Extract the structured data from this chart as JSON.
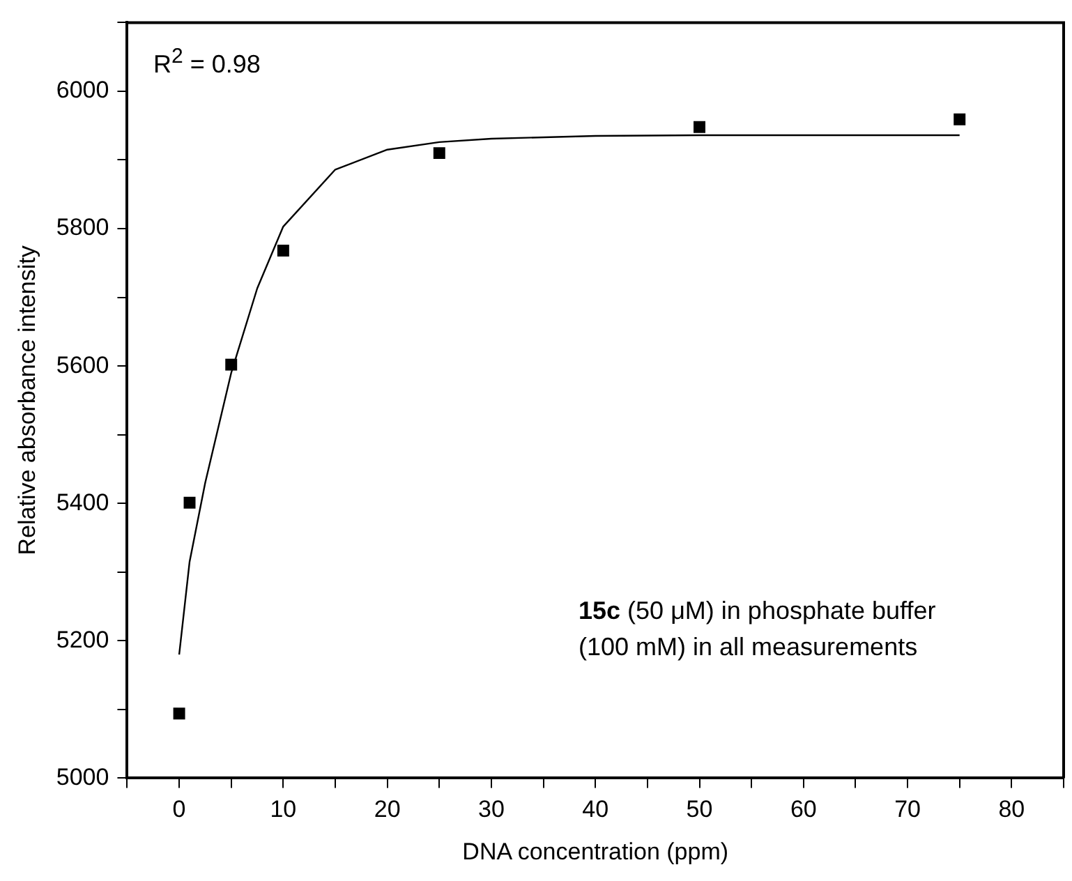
{
  "chart_data": {
    "type": "scatter",
    "xlabel": "DNA concentration (ppm)",
    "ylabel": "Relative absorbance intensity",
    "annotations": [
      "R$^{2}$ = 0.98",
      "15c (50 μM) in phosphate buffer (100 mM) in all measurements"
    ],
    "series": [
      {
        "color": "#000000",
        "marker": "square",
        "x": [
          0,
          1,
          5,
          10,
          25,
          50,
          75
        ],
        "values": [
          5094,
          5401,
          5602,
          5768,
          5910,
          5948,
          5959
        ]
      },
      {
        "type": "line",
        "color": "#000000",
        "marker": "none",
        "line_style": "solid",
        "x": [
          0,
          1,
          2.5,
          5,
          7.5,
          10,
          15,
          20,
          25,
          30,
          40,
          50,
          60,
          75
        ],
        "values": [
          5180,
          5315,
          5430,
          5590,
          5713,
          5803,
          5886,
          5915,
          5926,
          5931,
          5935,
          5936,
          5936,
          5936
        ]
      }
    ],
    "xlim": [
      -5,
      85
    ],
    "xticks": [
      {
        "value": -5,
        "label": null
      },
      0,
      {
        "value": 5,
        "label": null
      },
      10,
      {
        "value": 15,
        "label": null
      },
      20,
      {
        "value": 25,
        "label": null
      },
      30,
      {
        "value": 35,
        "label": null
      },
      40,
      {
        "value": 45,
        "label": null
      },
      50,
      {
        "value": 55,
        "label": null
      },
      60,
      {
        "value": 65,
        "label": null
      },
      70,
      {
        "value": 75,
        "label": null
      },
      80,
      {
        "value": 85,
        "label": null
      }
    ],
    "ylim": [
      5000,
      6100
    ],
    "yticks": [
      5000,
      {
        "value": 5100,
        "label": null
      },
      5200,
      {
        "value": 5300,
        "label": null
      },
      5400,
      {
        "value": 5500,
        "label": null
      },
      5600,
      {
        "value": 5700,
        "label": null
      },
      5800,
      {
        "value": 5900,
        "label": null
      },
      6000,
      {
        "value": 6100,
        "label": null
      }
    ],
    "grid": false,
    "legend": false
  }
}
